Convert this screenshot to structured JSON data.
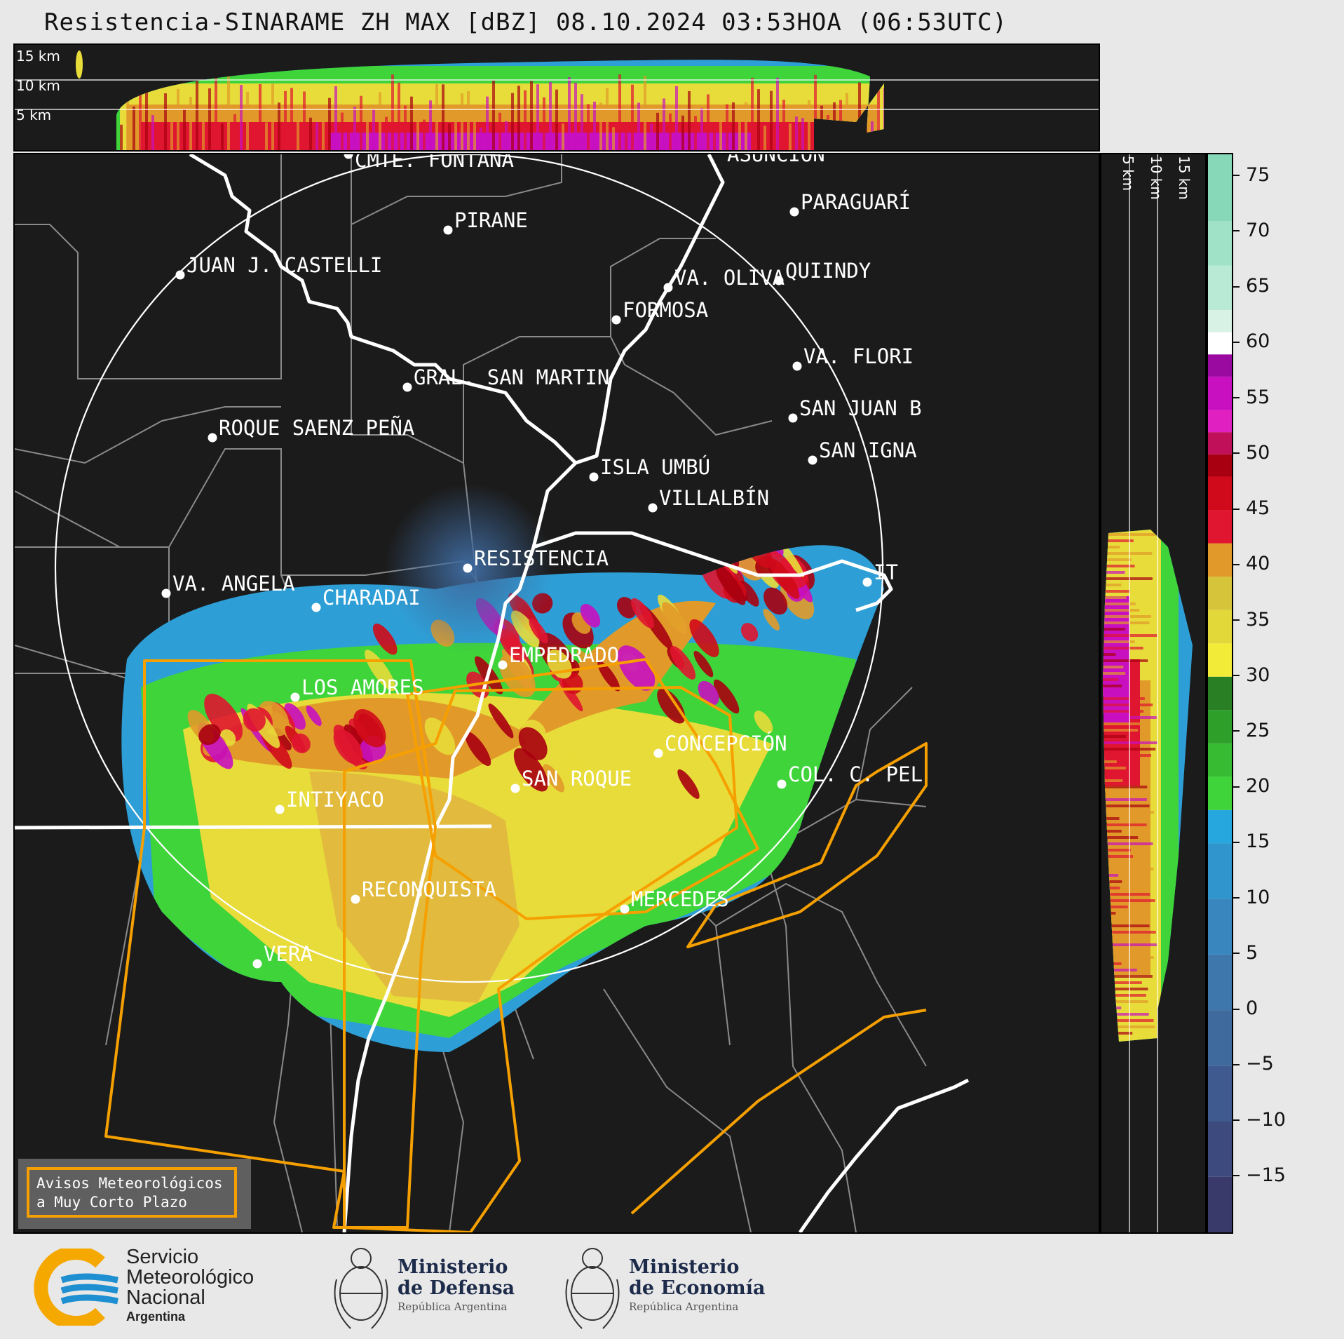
{
  "title": "Resistencia-SINARAME ZH MAX [dBZ] 08.10.2024 03:53HOA (06:53UTC)",
  "product": {
    "radar": "Resistencia-SINARAME",
    "variable": "ZH MAX",
    "unit": "dBZ",
    "date": "08.10.2024",
    "time_local": "03:53HOA",
    "time_utc": "06:53UTC"
  },
  "top_profile": {
    "altitude_labels": [
      "15 km",
      "10 km",
      "5 km"
    ]
  },
  "right_profile": {
    "altitude_labels": [
      "5 km",
      "10 km",
      "15 km"
    ]
  },
  "colorbar": {
    "ticks": [
      "75",
      "70",
      "65",
      "60",
      "55",
      "50",
      "45",
      "40",
      "35",
      "30",
      "25",
      "20",
      "15",
      "10",
      "5",
      "0",
      "−5",
      "−10",
      "−15"
    ],
    "min": -20,
    "max": 77,
    "colors": [
      {
        "from": -20,
        "color": "#3a3a6a"
      },
      {
        "from": -15,
        "color": "#3d4a7d"
      },
      {
        "from": -10,
        "color": "#3f5a8f"
      },
      {
        "from": -5,
        "color": "#3f6a9e"
      },
      {
        "from": 0,
        "color": "#3d77ab"
      },
      {
        "from": 5,
        "color": "#3886bd"
      },
      {
        "from": 10,
        "color": "#2f95cc"
      },
      {
        "from": 15,
        "color": "#26a8de"
      },
      {
        "from": 18,
        "color": "#3fd43a"
      },
      {
        "from": 21,
        "color": "#36bb32"
      },
      {
        "from": 24,
        "color": "#2ea02a"
      },
      {
        "from": 27,
        "color": "#297f24"
      },
      {
        "from": 30,
        "color": "#f2ec38"
      },
      {
        "from": 33,
        "color": "#e3d83a"
      },
      {
        "from": 36,
        "color": "#d6c43a"
      },
      {
        "from": 39,
        "color": "#e19a2a"
      },
      {
        "from": 42,
        "color": "#e01530"
      },
      {
        "from": 45,
        "color": "#d00a1a"
      },
      {
        "from": 48,
        "color": "#a80010"
      },
      {
        "from": 50,
        "color": "#c0105a"
      },
      {
        "from": 52,
        "color": "#e020c0"
      },
      {
        "from": 54,
        "color": "#c810c0"
      },
      {
        "from": 57,
        "color": "#9a0aa0"
      },
      {
        "from": 59,
        "color": "#ffffff"
      },
      {
        "from": 61,
        "color": "#d8f2e6"
      },
      {
        "from": 63,
        "color": "#b8ead6"
      },
      {
        "from": 67,
        "color": "#a0e2c8"
      },
      {
        "from": 71,
        "color": "#86d8b8"
      }
    ]
  },
  "cities": [
    {
      "name": "CMTE. FONTANA"
    },
    {
      "name": "ASUNCIÓN"
    },
    {
      "name": "PIRANE"
    },
    {
      "name": "PARAGUARÍ"
    },
    {
      "name": "JUAN J. CASTELLI"
    },
    {
      "name": "VA. OLIVA"
    },
    {
      "name": "QUIINDY"
    },
    {
      "name": "FORMOSA"
    },
    {
      "name": "GRAL. SAN MARTIN"
    },
    {
      "name": "VA. FLORI"
    },
    {
      "name": "SAN JUAN B"
    },
    {
      "name": "ROQUE SAENZ PEÑA"
    },
    {
      "name": "SAN IGNA"
    },
    {
      "name": "ISLA UMBÚ"
    },
    {
      "name": "VILLALBÍN"
    },
    {
      "name": "RESISTENCIA"
    },
    {
      "name": "VA. ANGELA"
    },
    {
      "name": "CHARADAI"
    },
    {
      "name": "IT"
    },
    {
      "name": "EMPEDRADO"
    },
    {
      "name": "LOS AMORES"
    },
    {
      "name": "CONCEPCIÓN"
    },
    {
      "name": "COL. C. PEL"
    },
    {
      "name": "SAN ROQUE"
    },
    {
      "name": "INTIYACO"
    },
    {
      "name": "RECONQUISTA"
    },
    {
      "name": "MERCEDES"
    },
    {
      "name": "VERA"
    }
  ],
  "legend": {
    "line1": "Avisos Meteorológicos",
    "line2": "a Muy Corto Plazo"
  },
  "logos": [
    {
      "line1": "Servicio",
      "line2": "Meteorológico",
      "line3": "Nacional",
      "line4": "Argentina"
    },
    {
      "line1": "Ministerio",
      "line2": "de Defensa",
      "line3": "República Argentina"
    },
    {
      "line1": "Ministerio",
      "line2": "de Economía",
      "line3": "República Argentina"
    }
  ],
  "colors": {
    "background": "#e8e8e8",
    "panel": "#1b1b1b",
    "warning_outline": "#f5a000",
    "smn_blue": "#1e8fd0",
    "smn_yellow": "#f5a800"
  }
}
